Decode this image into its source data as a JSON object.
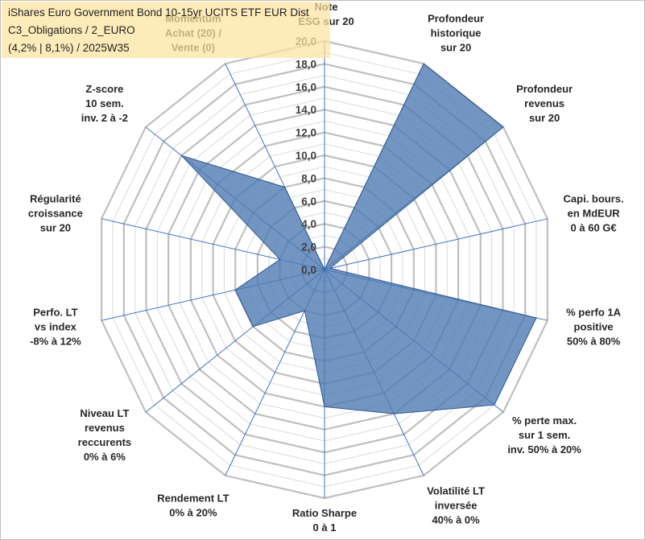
{
  "title": {
    "line1": "iShares Euro Government Bond 10-15yr UCITS ETF EUR Dist",
    "line2": "C3_Obligations / 2_EURO",
    "line3": "(4,2% | 8,1%) / 2025W35"
  },
  "colors": {
    "fill": "#4f7bb3",
    "stroke": "#2f5a8f",
    "grid_major": "#bfbfbf",
    "grid_minor": "#d9d9d9",
    "spoke": "#4472c4"
  },
  "chart_data": {
    "type": "radar",
    "title": "",
    "rmin": 0,
    "rmax": 20,
    "tick_step": 2,
    "minor_step": 1,
    "tick_labels": [
      "0,0",
      "2,0",
      "4,0",
      "6,0",
      "8,0",
      "10,0",
      "12,0",
      "14,0",
      "16,0",
      "18,0",
      "20,0"
    ],
    "axes": [
      {
        "lines": [
          "Note",
          "ESG sur 20"
        ],
        "value": 0
      },
      {
        "lines": [
          "Profondeur",
          "historique",
          "sur 20"
        ],
        "value": 20
      },
      {
        "lines": [
          "Profondeur",
          "revenus",
          "sur 20"
        ],
        "value": 20
      },
      {
        "lines": [
          "Capi. bours.",
          "en MdEUR",
          "0 à 60 G€"
        ],
        "value": 0.5
      },
      {
        "lines": [
          "% perfo 1A",
          "positive",
          "50% à 80%"
        ],
        "value": 19
      },
      {
        "lines": [
          "% perte max.",
          "sur 1 sem.",
          "inv. 50% à 20%"
        ],
        "value": 19
      },
      {
        "lines": [
          "Volatilité LT",
          "inversée",
          "40% à 0%"
        ],
        "value": 14
      },
      {
        "lines": [
          "Ratio Sharpe",
          "0 à 1"
        ],
        "value": 12
      },
      {
        "lines": [
          "Rendement LT",
          "0% à 20%"
        ],
        "value": 4
      },
      {
        "lines": [
          "Niveau LT",
          "revenus",
          "reccurents",
          "0% à 6%"
        ],
        "value": 8
      },
      {
        "lines": [
          "Perfo. LT",
          "vs index",
          "-8% à 12%"
        ],
        "value": 8
      },
      {
        "lines": [
          "Régularité",
          "croissance",
          "sur 20"
        ],
        "value": 4
      },
      {
        "lines": [
          "Z-score",
          "10 sem.",
          "inv. 2 à -2"
        ],
        "value": 16
      },
      {
        "lines": [
          "Momentum",
          "Achat (20) /",
          "Vente (0)"
        ],
        "value": 8
      }
    ]
  }
}
